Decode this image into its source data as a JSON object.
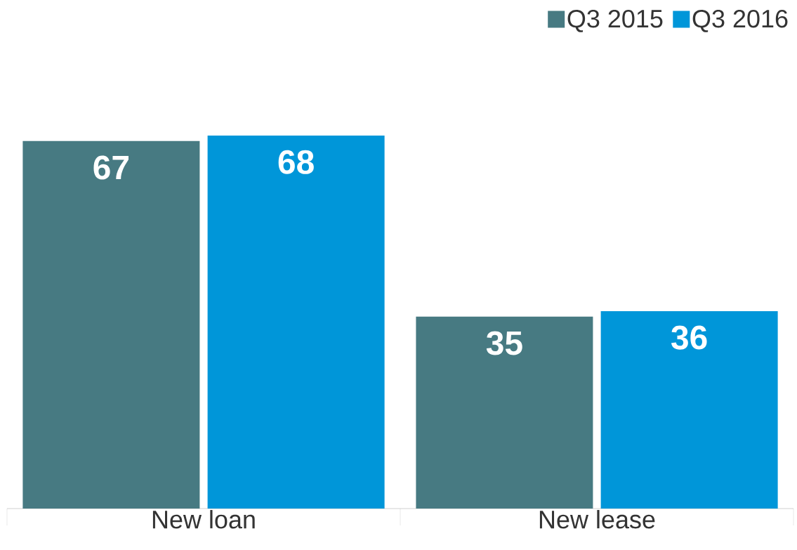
{
  "chart_data": {
    "type": "bar",
    "categories": [
      "New loan",
      "New lease"
    ],
    "series": [
      {
        "name": "Q3 2015",
        "color": "#477a82",
        "values": [
          67,
          35
        ]
      },
      {
        "name": "Q3 2016",
        "color": "#0096d9",
        "values": [
          68,
          36
        ]
      }
    ],
    "data_labels": true,
    "legend": "top right"
  }
}
